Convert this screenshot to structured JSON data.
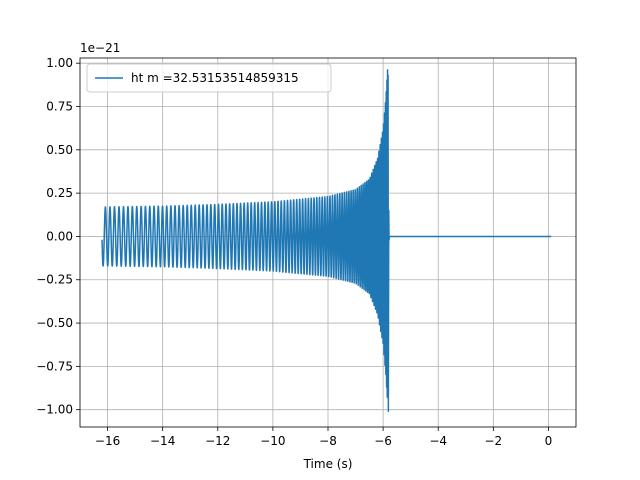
{
  "chart_data": {
    "type": "line",
    "title": "",
    "xlabel": "Time (s)",
    "ylabel": "",
    "y_offset_text": "1e−21",
    "xlim": [
      -17.0,
      1.0
    ],
    "ylim": [
      -1.1,
      1.03
    ],
    "grid": true,
    "legend_position": "upper-left",
    "x_ticks": [
      -16,
      -14,
      -12,
      -10,
      -8,
      -6,
      -4,
      -2,
      0
    ],
    "x_tick_labels": [
      "−16",
      "−14",
      "−12",
      "−10",
      "−8",
      "−6",
      "−4",
      "−2",
      "0"
    ],
    "y_ticks": [
      -1.0,
      -0.75,
      -0.5,
      -0.25,
      0.0,
      0.25,
      0.5,
      0.75,
      1.0
    ],
    "y_tick_labels": [
      "−1.00",
      "−0.75",
      "−0.50",
      "−0.25",
      "0.00",
      "0.25",
      "0.50",
      "0.75",
      "1.00"
    ],
    "series": [
      {
        "name": "ht m =32.53153514859315",
        "color": "#1f77b4",
        "waveform": "chirp",
        "start_time": -16.2,
        "merger_time": -5.8,
        "end_time": 0.1,
        "envelope_points": [
          [
            -16.2,
            0.17
          ],
          [
            -14.0,
            0.175
          ],
          [
            -12.0,
            0.185
          ],
          [
            -10.0,
            0.2
          ],
          [
            -8.0,
            0.23
          ],
          [
            -7.0,
            0.27
          ],
          [
            -6.5,
            0.33
          ],
          [
            -6.2,
            0.45
          ],
          [
            -6.0,
            0.62
          ],
          [
            -5.9,
            0.8
          ],
          [
            -5.85,
            0.93
          ],
          [
            -5.82,
            1.01
          ]
        ],
        "peak_positive": 0.93,
        "peak_negative": -1.01,
        "post_merger_value": 0.0
      }
    ]
  }
}
